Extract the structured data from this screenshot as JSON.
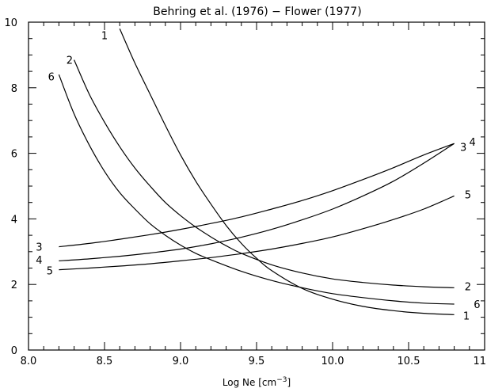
{
  "chart_data": {
    "type": "line",
    "title": "Behring et al. (1976) − Flower (1977)",
    "xlabel": "Log Ne [cm",
    "xlabel_sup": "−3",
    "xlabel_end": "]",
    "ylabel": "",
    "xlim": [
      8.0,
      11.0
    ],
    "ylim": [
      0,
      10
    ],
    "grid": false,
    "x_ticks": [
      "8.0",
      "8.5",
      "9.0",
      "9.5",
      "10.0",
      "10.5",
      "11.0"
    ],
    "y_ticks": [
      "0",
      "2",
      "4",
      "6",
      "8",
      "10"
    ],
    "series": [
      {
        "name": "1",
        "x": [
          8.6,
          8.7,
          8.8,
          8.9,
          9.0,
          9.1,
          9.2,
          9.3,
          9.4,
          9.5,
          9.6,
          9.8,
          10.0,
          10.2,
          10.4,
          10.6,
          10.8
        ],
        "y": [
          9.8,
          8.75,
          7.8,
          6.85,
          5.95,
          5.15,
          4.45,
          3.8,
          3.25,
          2.8,
          2.42,
          1.88,
          1.55,
          1.33,
          1.2,
          1.12,
          1.08
        ]
      },
      {
        "name": "2",
        "x": [
          8.3,
          8.4,
          8.5,
          8.6,
          8.7,
          8.8,
          8.9,
          9.0,
          9.1,
          9.2,
          9.3,
          9.4,
          9.6,
          9.8,
          10.0,
          10.2,
          10.4,
          10.6,
          10.8
        ],
        "y": [
          8.85,
          7.8,
          6.95,
          6.2,
          5.55,
          5.0,
          4.5,
          4.1,
          3.75,
          3.45,
          3.18,
          2.95,
          2.6,
          2.35,
          2.17,
          2.06,
          1.98,
          1.93,
          1.9
        ]
      },
      {
        "name": "6",
        "x": [
          8.2,
          8.3,
          8.4,
          8.5,
          8.6,
          8.7,
          8.8,
          8.9,
          9.0,
          9.1,
          9.2,
          9.4,
          9.6,
          9.8,
          10.0,
          10.2,
          10.4,
          10.6,
          10.8
        ],
        "y": [
          8.4,
          7.2,
          6.25,
          5.45,
          4.8,
          4.3,
          3.85,
          3.5,
          3.2,
          2.95,
          2.75,
          2.4,
          2.12,
          1.9,
          1.72,
          1.6,
          1.5,
          1.43,
          1.4
        ]
      },
      {
        "name": "3",
        "x": [
          8.2,
          8.4,
          8.6,
          8.8,
          9.0,
          9.2,
          9.4,
          9.6,
          9.8,
          10.0,
          10.2,
          10.4,
          10.6,
          10.8
        ],
        "y": [
          3.15,
          3.25,
          3.38,
          3.52,
          3.68,
          3.86,
          4.06,
          4.3,
          4.56,
          4.86,
          5.2,
          5.56,
          5.95,
          6.3
        ]
      },
      {
        "name": "4",
        "x": [
          8.2,
          8.4,
          8.6,
          8.8,
          9.0,
          9.2,
          9.4,
          9.6,
          9.8,
          10.0,
          10.2,
          10.4,
          10.6,
          10.8
        ],
        "y": [
          2.72,
          2.78,
          2.86,
          2.96,
          3.08,
          3.24,
          3.44,
          3.68,
          3.97,
          4.3,
          4.7,
          5.15,
          5.7,
          6.3
        ]
      },
      {
        "name": "5",
        "x": [
          8.2,
          8.4,
          8.6,
          8.8,
          9.0,
          9.2,
          9.4,
          9.6,
          9.8,
          10.0,
          10.2,
          10.4,
          10.6,
          10.8
        ],
        "y": [
          2.45,
          2.5,
          2.56,
          2.63,
          2.72,
          2.82,
          2.94,
          3.08,
          3.25,
          3.45,
          3.7,
          3.98,
          4.3,
          4.7
        ]
      }
    ],
    "curve_labels": [
      {
        "text": "1",
        "at_x": 8.5,
        "at_y": 9.6,
        "near": "start"
      },
      {
        "text": "2",
        "at_x": 8.27,
        "at_y": 8.85,
        "near": "start"
      },
      {
        "text": "6",
        "at_x": 8.15,
        "at_y": 8.35,
        "near": "start"
      },
      {
        "text": "3",
        "at_x": 8.07,
        "at_y": 3.15,
        "near": "start"
      },
      {
        "text": "4",
        "at_x": 8.07,
        "at_y": 2.75,
        "near": "start"
      },
      {
        "text": "5",
        "at_x": 8.14,
        "at_y": 2.43,
        "near": "start"
      },
      {
        "text": "3",
        "at_x": 10.86,
        "at_y": 6.2,
        "near": "end"
      },
      {
        "text": "4",
        "at_x": 10.92,
        "at_y": 6.35,
        "near": "end"
      },
      {
        "text": "5",
        "at_x": 10.89,
        "at_y": 4.75,
        "near": "end"
      },
      {
        "text": "2",
        "at_x": 10.89,
        "at_y": 1.95,
        "near": "end"
      },
      {
        "text": "6",
        "at_x": 10.95,
        "at_y": 1.4,
        "near": "end"
      },
      {
        "text": "1",
        "at_x": 10.88,
        "at_y": 1.05,
        "near": "end"
      }
    ]
  }
}
